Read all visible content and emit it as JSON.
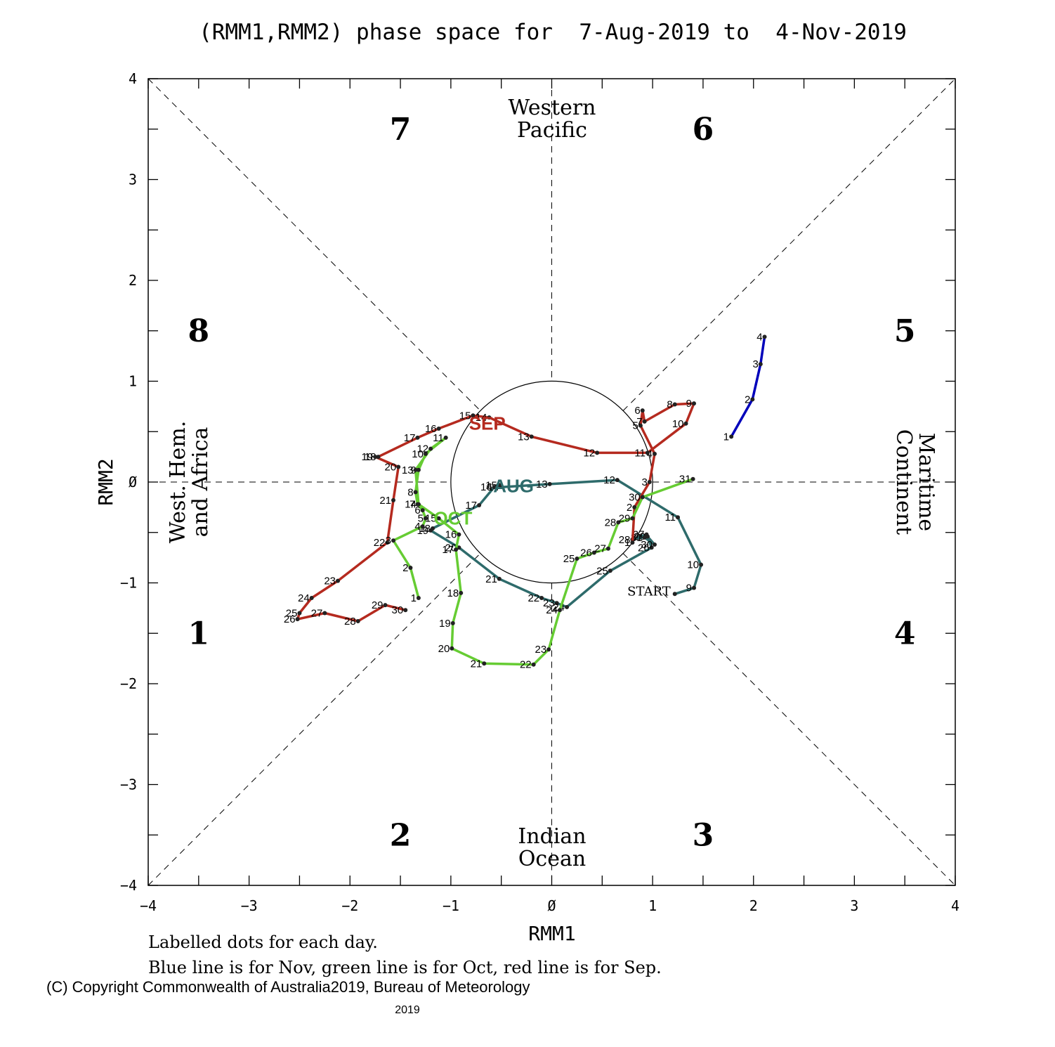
{
  "chart_data": {
    "type": "line",
    "title": "(RMM1,RMM2) phase space for  7-Aug-2019 to  4-Nov-2019",
    "xlabel": "RMM1",
    "ylabel": "RMM2",
    "xlim": [
      -4,
      4
    ],
    "ylim": [
      -4,
      4
    ],
    "tick_values": [
      -4,
      -3,
      -2,
      -1,
      0,
      1,
      2,
      3,
      4
    ],
    "tick_labels": [
      "−4",
      "−3",
      "−2",
      "−1",
      "Ø",
      "1",
      "2",
      "3",
      "4"
    ],
    "phase_labels": [
      {
        "text": "1",
        "x": -3.5,
        "y": -1.5
      },
      {
        "text": "2",
        "x": -1.5,
        "y": -3.5
      },
      {
        "text": "3",
        "x": 1.5,
        "y": -3.5
      },
      {
        "text": "4",
        "x": 3.5,
        "y": -1.5
      },
      {
        "text": "5",
        "x": 3.5,
        "y": 1.5
      },
      {
        "text": "6",
        "x": 1.5,
        "y": 3.5
      },
      {
        "text": "7",
        "x": -1.5,
        "y": 3.5
      },
      {
        "text": "8",
        "x": -3.5,
        "y": 1.5
      }
    ],
    "regions": {
      "top": [
        "Western",
        "Pacific"
      ],
      "bottom": [
        "Indian",
        "Ocean"
      ],
      "left": [
        "West. Hem.",
        "and Africa"
      ],
      "right": [
        "Maritime",
        "Continent"
      ]
    },
    "series": [
      {
        "name": "AUG",
        "color": "#2e6b6b",
        "label": "AUG",
        "start_label": "START",
        "points": [
          {
            "d": "",
            "x": 1.22,
            "y": -1.11
          },
          {
            "d": "9",
            "x": 1.41,
            "y": -1.05
          },
          {
            "d": "10",
            "x": 1.48,
            "y": -0.82
          },
          {
            "d": "11",
            "x": 1.25,
            "y": -0.35
          },
          {
            "d": "12",
            "x": 0.65,
            "y": 0.02
          },
          {
            "d": "13",
            "x": -0.02,
            "y": -0.02
          },
          {
            "d": "14",
            "x": -0.5,
            "y": -0.05
          },
          {
            "d": "15",
            "x": -0.52,
            "y": -0.03
          },
          {
            "d": "16",
            "x": -0.57,
            "y": -0.05
          },
          {
            "d": "17",
            "x": -0.72,
            "y": -0.23
          },
          {
            "d": "18",
            "x": -1.18,
            "y": -0.46
          },
          {
            "d": "19",
            "x": -1.2,
            "y": -0.48
          },
          {
            "d": "20",
            "x": -0.92,
            "y": -0.65
          },
          {
            "d": "21",
            "x": -0.52,
            "y": -0.96
          },
          {
            "d": "22",
            "x": -0.1,
            "y": -1.15
          },
          {
            "d": "23",
            "x": 0.05,
            "y": -1.2
          },
          {
            "d": "24",
            "x": 0.15,
            "y": -1.24
          },
          {
            "d": "25",
            "x": 0.58,
            "y": -0.88
          },
          {
            "d": "26",
            "x": 0.99,
            "y": -0.65
          },
          {
            "d": "27",
            "x": 0.94,
            "y": -0.52
          },
          {
            "d": "28",
            "x": 0.8,
            "y": -0.57
          },
          {
            "d": "29",
            "x": 0.95,
            "y": -0.54
          },
          {
            "d": "30",
            "x": 1.02,
            "y": -0.62
          },
          {
            "d": "31",
            "x": 0.92,
            "y": -0.55
          }
        ]
      },
      {
        "name": "SEP",
        "color": "#b52a1f",
        "label": "SEP",
        "points": [
          {
            "d": "1",
            "x": 0.8,
            "y": -0.6
          },
          {
            "d": "2",
            "x": 0.82,
            "y": -0.25
          },
          {
            "d": "3",
            "x": 0.97,
            "y": 0.0
          },
          {
            "d": "4",
            "x": 1.02,
            "y": 0.28
          },
          {
            "d": "5",
            "x": 0.88,
            "y": 0.56
          },
          {
            "d": "6",
            "x": 0.9,
            "y": 0.71
          },
          {
            "d": "7",
            "x": 0.92,
            "y": 0.6
          },
          {
            "d": "8",
            "x": 1.22,
            "y": 0.77
          },
          {
            "d": "9",
            "x": 1.41,
            "y": 0.78
          },
          {
            "d": "10",
            "x": 1.33,
            "y": 0.58
          },
          {
            "d": "11",
            "x": 0.95,
            "y": 0.29
          },
          {
            "d": "12",
            "x": 0.45,
            "y": 0.29
          },
          {
            "d": "13",
            "x": -0.2,
            "y": 0.45
          },
          {
            "d": "14",
            "x": -0.62,
            "y": 0.64
          },
          {
            "d": "15",
            "x": -0.78,
            "y": 0.66
          },
          {
            "d": "16",
            "x": -1.12,
            "y": 0.53
          },
          {
            "d": "17",
            "x": -1.33,
            "y": 0.44
          },
          {
            "d": "18",
            "x": -1.72,
            "y": 0.25
          },
          {
            "d": "19",
            "x": -1.75,
            "y": 0.25
          },
          {
            "d": "20",
            "x": -1.52,
            "y": 0.15
          },
          {
            "d": "21",
            "x": -1.57,
            "y": -0.18
          },
          {
            "d": "22",
            "x": -1.63,
            "y": -0.6
          },
          {
            "d": "23",
            "x": -2.12,
            "y": -0.98
          },
          {
            "d": "24",
            "x": -2.38,
            "y": -1.15
          },
          {
            "d": "25",
            "x": -2.5,
            "y": -1.3
          },
          {
            "d": "26",
            "x": -2.52,
            "y": -1.36
          },
          {
            "d": "27",
            "x": -2.25,
            "y": -1.3
          },
          {
            "d": "28",
            "x": -1.92,
            "y": -1.38
          },
          {
            "d": "29",
            "x": -1.65,
            "y": -1.22
          },
          {
            "d": "30",
            "x": -1.45,
            "y": -1.27
          }
        ]
      },
      {
        "name": "OCT",
        "color": "#66cc33",
        "label": "OCT",
        "points": [
          {
            "d": "1",
            "x": -1.32,
            "y": -1.15
          },
          {
            "d": "2",
            "x": -1.4,
            "y": -0.85
          },
          {
            "d": "3",
            "x": -1.57,
            "y": -0.58
          },
          {
            "d": "4",
            "x": -1.28,
            "y": -0.44
          },
          {
            "d": "5",
            "x": -1.25,
            "y": -0.36
          },
          {
            "d": "6",
            "x": -1.28,
            "y": -0.28
          },
          {
            "d": "7",
            "x": -1.33,
            "y": -0.22
          },
          {
            "d": "8",
            "x": -1.35,
            "y": -0.1
          },
          {
            "d": "9",
            "x": -1.32,
            "y": 0.12
          },
          {
            "d": "10",
            "x": -1.25,
            "y": 0.28
          },
          {
            "d": "11",
            "x": -1.05,
            "y": 0.44
          },
          {
            "d": "12",
            "x": -1.2,
            "y": 0.33
          },
          {
            "d": "13",
            "x": -1.35,
            "y": 0.12
          },
          {
            "d": "14",
            "x": -1.32,
            "y": -0.22
          },
          {
            "d": "15",
            "x": -1.12,
            "y": -0.36
          },
          {
            "d": "16",
            "x": -0.92,
            "y": -0.52
          },
          {
            "d": "17",
            "x": -0.95,
            "y": -0.67
          },
          {
            "d": "18",
            "x": -0.9,
            "y": -1.1
          },
          {
            "d": "19",
            "x": -0.98,
            "y": -1.4
          },
          {
            "d": "20",
            "x": -0.99,
            "y": -1.65
          },
          {
            "d": "21",
            "x": -0.67,
            "y": -1.8
          },
          {
            "d": "22",
            "x": -0.18,
            "y": -1.81
          },
          {
            "d": "23",
            "x": -0.03,
            "y": -1.66
          },
          {
            "d": "24",
            "x": 0.08,
            "y": -1.27
          },
          {
            "d": "25",
            "x": 0.25,
            "y": -0.76
          },
          {
            "d": "26",
            "x": 0.42,
            "y": -0.7
          },
          {
            "d": "27",
            "x": 0.56,
            "y": -0.66
          },
          {
            "d": "28",
            "x": 0.66,
            "y": -0.4
          },
          {
            "d": "29",
            "x": 0.8,
            "y": -0.36
          },
          {
            "d": "30",
            "x": 0.9,
            "y": -0.15
          },
          {
            "d": "31",
            "x": 1.4,
            "y": 0.03
          }
        ]
      },
      {
        "name": "NOV",
        "color": "#0000bb",
        "label": "",
        "points": [
          {
            "d": "1",
            "x": 1.78,
            "y": 0.45
          },
          {
            "d": "2",
            "x": 1.99,
            "y": 0.82
          },
          {
            "d": "3",
            "x": 2.07,
            "y": 1.17
          },
          {
            "d": "4",
            "x": 2.11,
            "y": 1.44
          }
        ]
      }
    ]
  },
  "notes": {
    "line1": "Labelled dots for each day.",
    "line2": "Blue line is for Nov, green line is for Oct, red line is for Sep."
  },
  "copyright": {
    "main": "(C) Copyright Commonwealth of Australia2019, Bureau of Meteorology",
    "year": "2019"
  }
}
